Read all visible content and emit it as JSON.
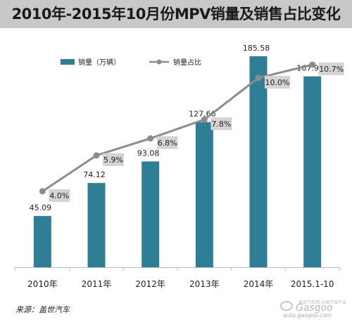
{
  "header": {
    "title": "2010年-2015年10月份MPV销量及销售占比变化"
  },
  "chart_data": {
    "type": "bar+line",
    "categories": [
      "2010年",
      "2011年",
      "2012年",
      "2013年",
      "2014年",
      "2015.1-10"
    ],
    "series": [
      {
        "name": "销量（万辆）",
        "type": "bar",
        "values": [
          45.09,
          74.12,
          93.08,
          127.66,
          185.58,
          167.91
        ],
        "labels": [
          "45.09",
          "74.12",
          "93.08",
          "127.66",
          "185.58",
          "167.91"
        ],
        "color": "#2e7f95"
      },
      {
        "name": "销量占比",
        "type": "line",
        "values": [
          4.0,
          5.9,
          6.8,
          7.8,
          10.0,
          10.7
        ],
        "labels": [
          "4.0%",
          "5.9%",
          "6.8%",
          "7.8%",
          "10.0%",
          "10.7%"
        ],
        "color": "#8c8c8c"
      }
    ],
    "y_left_range": [
      0,
      185.58
    ],
    "y_right_range": [
      0,
      11.5
    ],
    "legend": "top-left",
    "grid": false
  },
  "footer": {
    "source": "来源：盖世汽车"
  },
  "watermark": {
    "cn": "盖世汽车网 中国汽车产业",
    "brand": "Gasgoo",
    "url": "auto.gasgoo.com"
  }
}
